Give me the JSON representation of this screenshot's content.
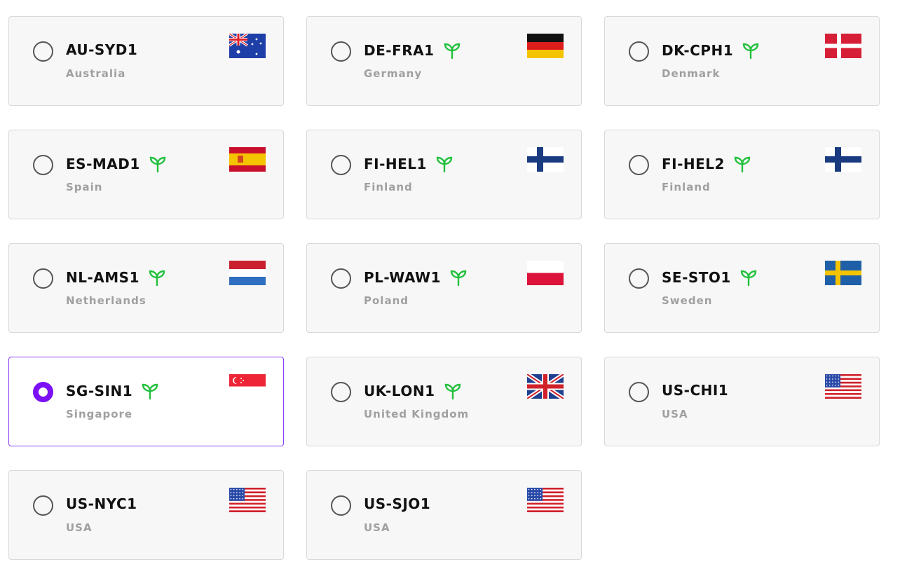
{
  "accent_color": "#7b10f5",
  "eco_color": "#22c03c",
  "selected": "SG-SIN1",
  "regions": [
    {
      "code": "AU-SYD1",
      "country": "Australia",
      "eco": false,
      "flag": "au"
    },
    {
      "code": "DE-FRA1",
      "country": "Germany",
      "eco": true,
      "flag": "de"
    },
    {
      "code": "DK-CPH1",
      "country": "Denmark",
      "eco": true,
      "flag": "dk"
    },
    {
      "code": "ES-MAD1",
      "country": "Spain",
      "eco": true,
      "flag": "es"
    },
    {
      "code": "FI-HEL1",
      "country": "Finland",
      "eco": true,
      "flag": "fi"
    },
    {
      "code": "FI-HEL2",
      "country": "Finland",
      "eco": true,
      "flag": "fi"
    },
    {
      "code": "NL-AMS1",
      "country": "Netherlands",
      "eco": true,
      "flag": "nl"
    },
    {
      "code": "PL-WAW1",
      "country": "Poland",
      "eco": true,
      "flag": "pl"
    },
    {
      "code": "SE-STO1",
      "country": "Sweden",
      "eco": true,
      "flag": "se"
    },
    {
      "code": "SG-SIN1",
      "country": "Singapore",
      "eco": true,
      "flag": "sg"
    },
    {
      "code": "UK-LON1",
      "country": "United Kingdom",
      "eco": true,
      "flag": "gb"
    },
    {
      "code": "US-CHI1",
      "country": "USA",
      "eco": false,
      "flag": "us"
    },
    {
      "code": "US-NYC1",
      "country": "USA",
      "eco": false,
      "flag": "us"
    },
    {
      "code": "US-SJO1",
      "country": "USA",
      "eco": false,
      "flag": "us"
    }
  ]
}
